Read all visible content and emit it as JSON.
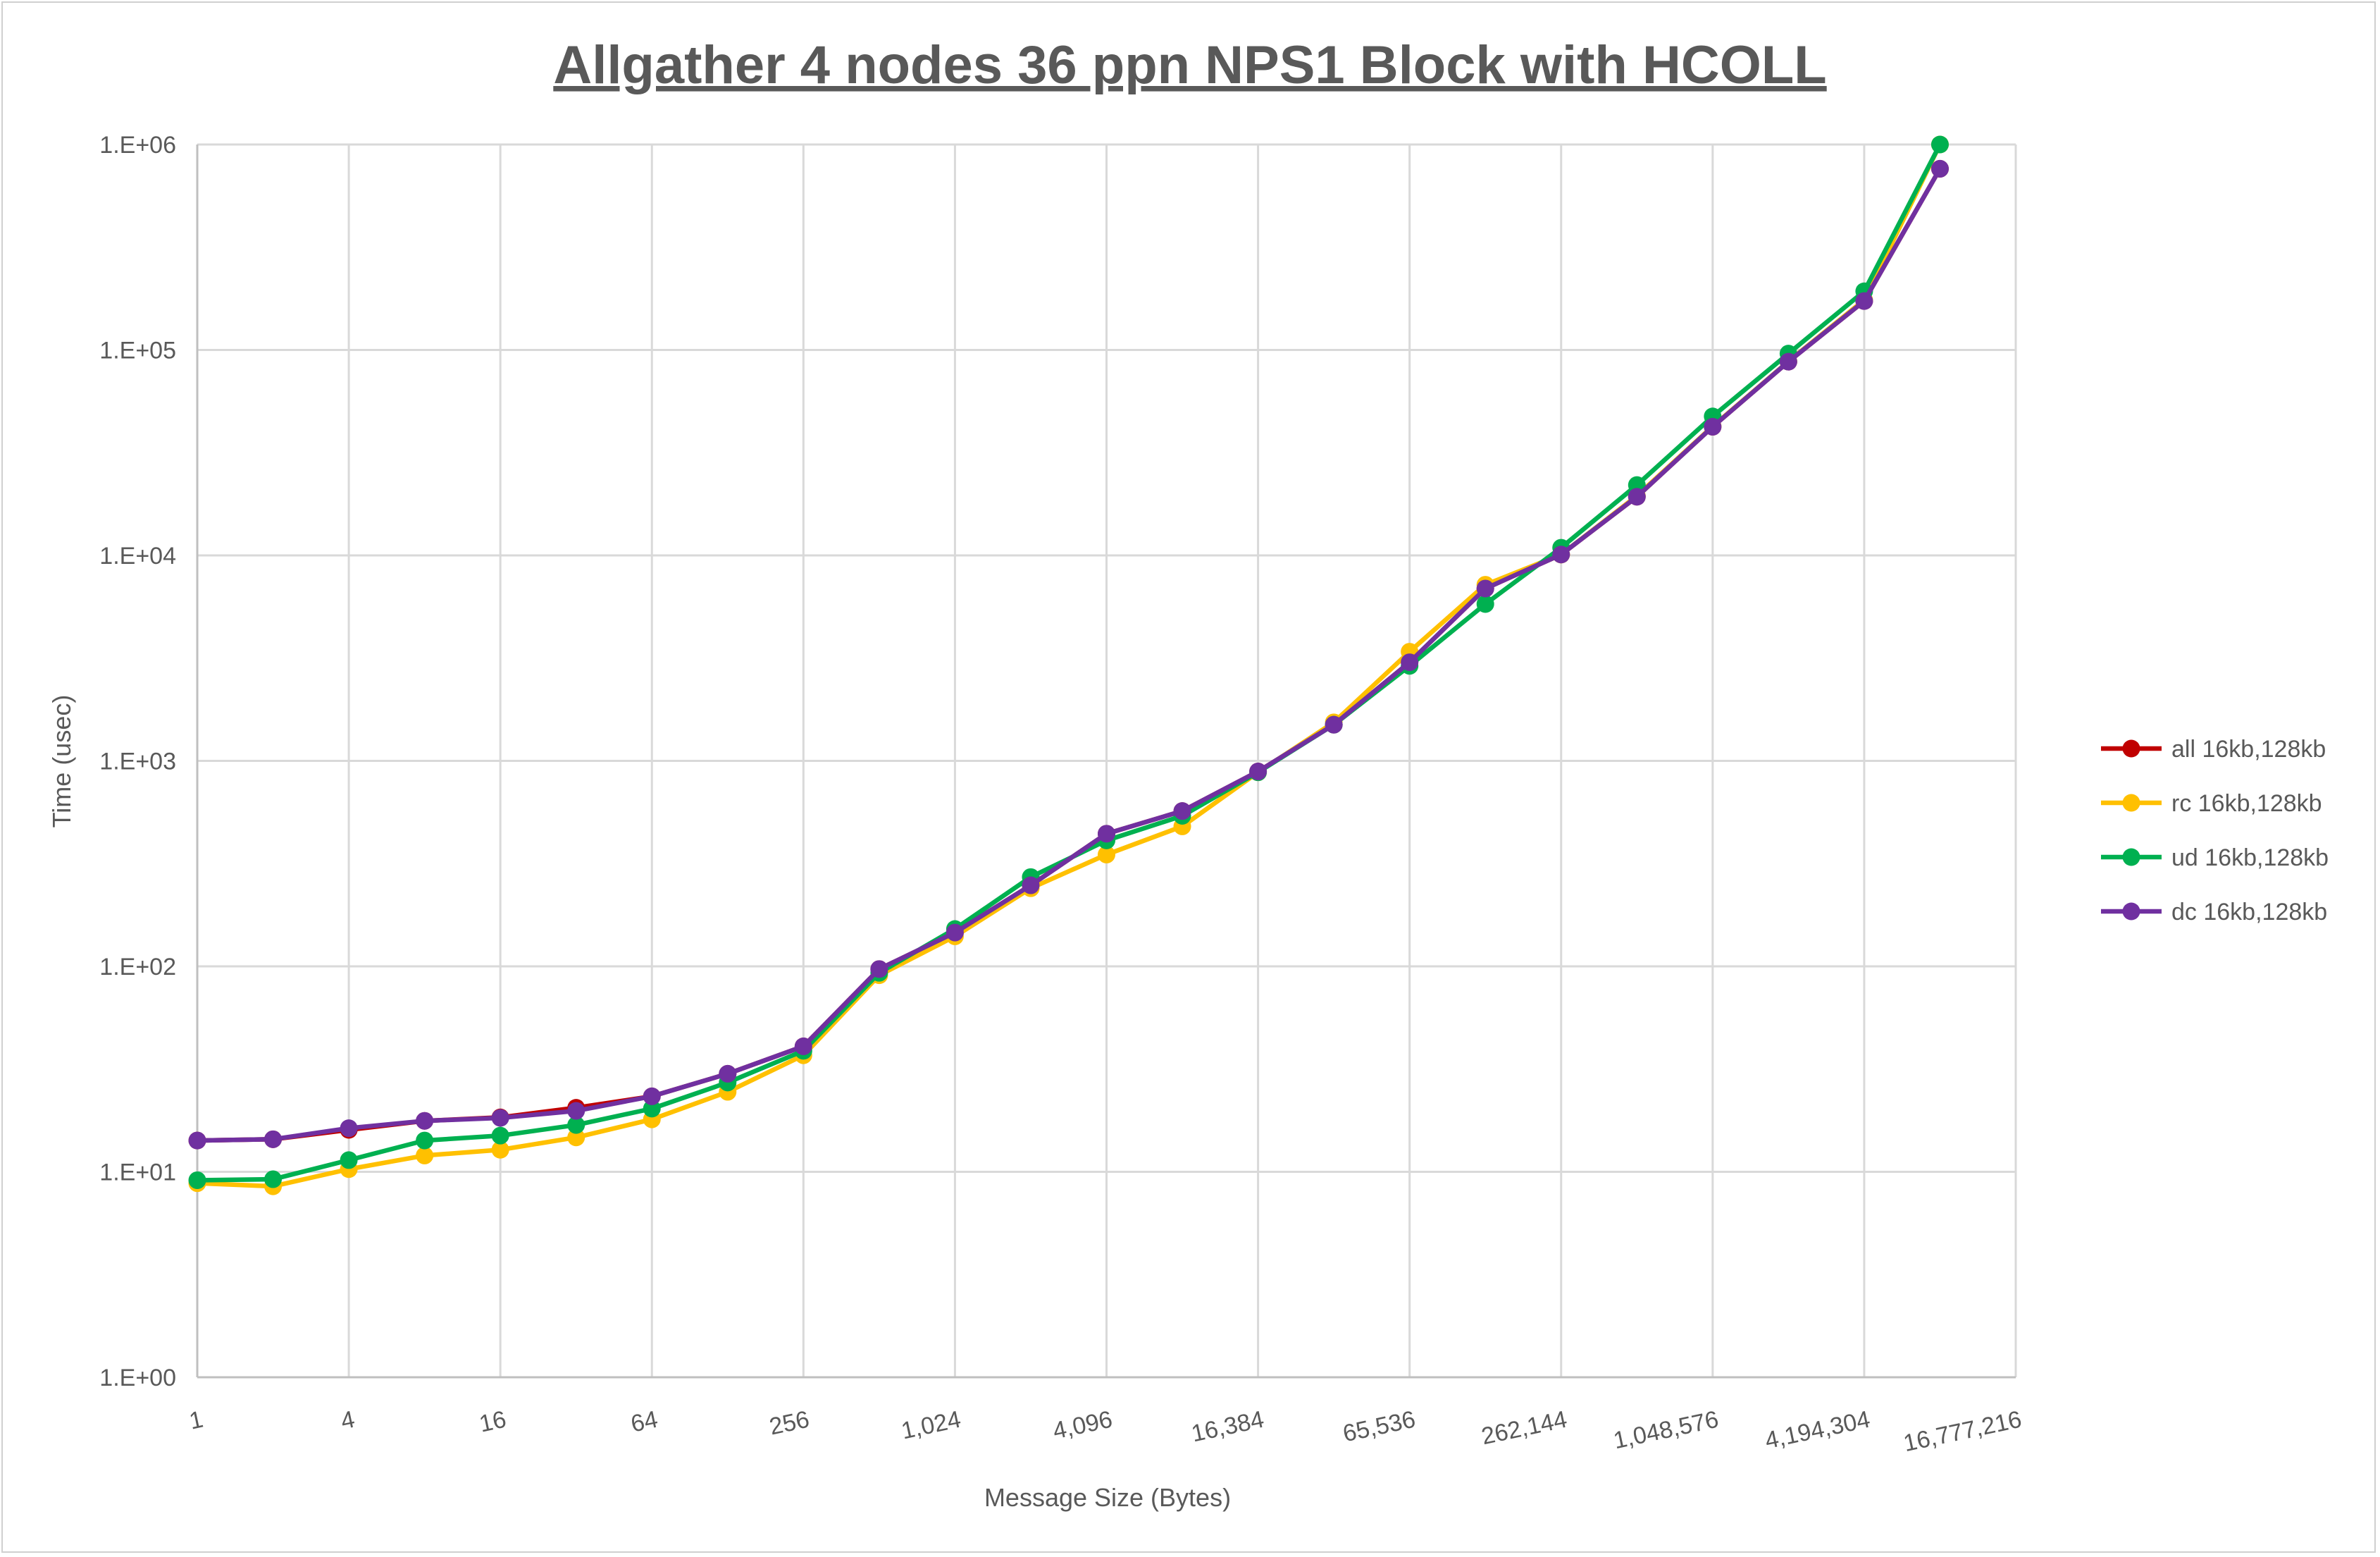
{
  "chart_data": {
    "type": "line",
    "title": "Allgather 4 nodes 36 ppn NPS1 Block with HCOLL",
    "xlabel": "Message Size (Bytes)",
    "ylabel": "Time (usec)",
    "x_scale": "log2",
    "y_scale": "log10",
    "xlim": [
      1,
      16777216
    ],
    "ylim": [
      1,
      1000000
    ],
    "grid": true,
    "legend_position": "right",
    "x_tick_labels": [
      "1",
      "4",
      "16",
      "64",
      "256",
      "1,024",
      "4,096",
      "16,384",
      "65,536",
      "262,144",
      "1,048,576",
      "4,194,304",
      "16,777,216"
    ],
    "y_tick_labels": [
      "1.E+00",
      "1.E+01",
      "1.E+02",
      "1.E+03",
      "1.E+04",
      "1.E+05",
      "1.E+06"
    ],
    "x": [
      1,
      2,
      4,
      8,
      16,
      32,
      64,
      128,
      256,
      512,
      1024,
      2048,
      4096,
      8192,
      16384,
      32768,
      65536,
      131072,
      262144,
      524288,
      1048576,
      2097152,
      4194304,
      8388608
    ],
    "series": [
      {
        "name": "all 16kb,128kb",
        "color": "#C00000",
        "values": [
          14.2,
          14.4,
          16.0,
          17.7,
          18.4,
          20.5,
          23.3,
          30,
          40.8,
          97,
          146,
          248,
          442,
          570,
          888,
          1500,
          3020,
          6900,
          10100,
          19300,
          42300,
          87700,
          173000,
          762000
        ]
      },
      {
        "name": "rc 16kb,128kb",
        "color": "#FFC000",
        "values": [
          8.8,
          8.5,
          10.3,
          12.0,
          12.8,
          14.7,
          18.0,
          24.5,
          36.9,
          90.5,
          140,
          240,
          350,
          480,
          880,
          1540,
          3400,
          7200,
          10100,
          19500,
          42500,
          88000,
          175000,
          1000000
        ]
      },
      {
        "name": "ud 16kb,128kb",
        "color": "#00B050",
        "values": [
          9.1,
          9.2,
          11.4,
          14.2,
          15.0,
          16.9,
          20.3,
          27.2,
          38.8,
          93,
          152,
          272,
          410,
          540,
          880,
          1500,
          2900,
          5800,
          10900,
          22000,
          47500,
          96000,
          193000,
          1000000
        ]
      },
      {
        "name": "dc 16kb,128kb",
        "color": "#7030A0",
        "values": [
          14.2,
          14.4,
          16.3,
          17.7,
          18.3,
          19.8,
          23.3,
          30,
          40.8,
          97,
          146,
          248,
          442,
          570,
          888,
          1500,
          3020,
          6900,
          10100,
          19300,
          42300,
          87700,
          173000,
          762000
        ]
      }
    ]
  }
}
